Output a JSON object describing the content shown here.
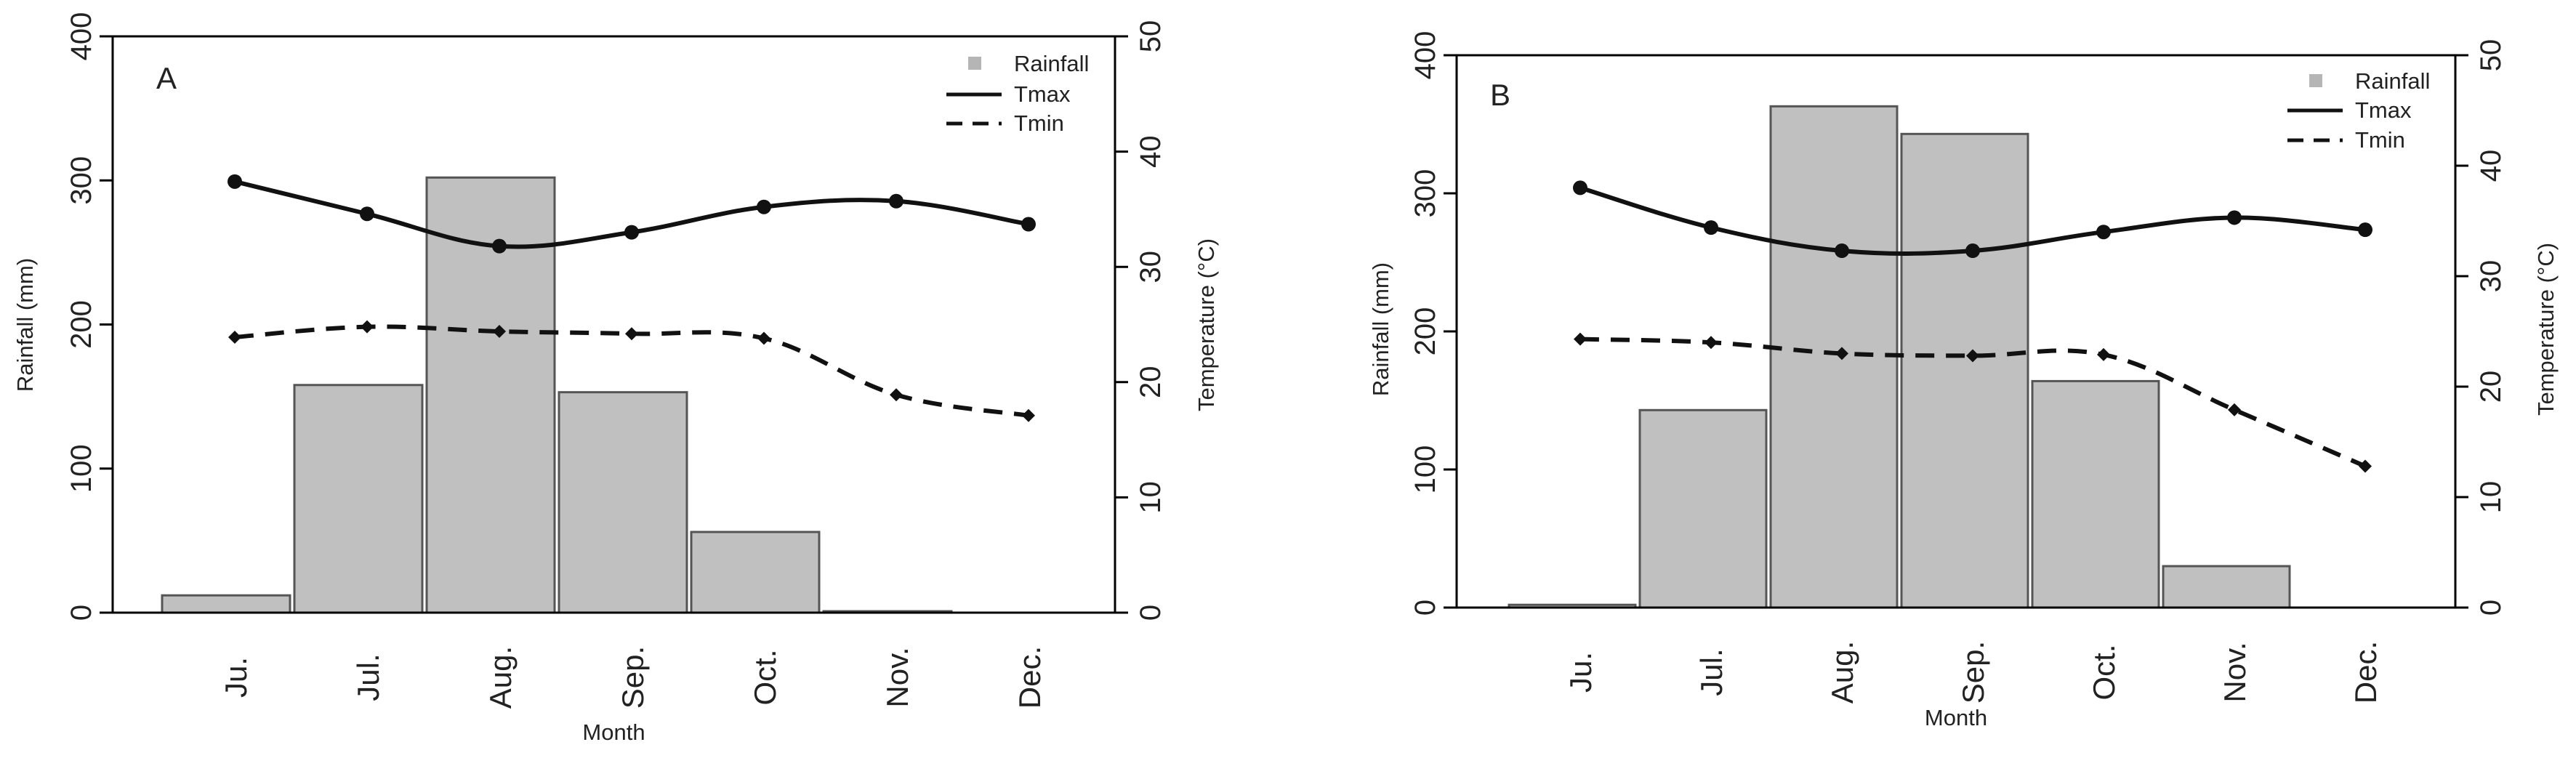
{
  "chart_data": [
    {
      "panel": "A",
      "type": "bar+line",
      "xlabel": "Month",
      "ylabel_left": "Rainfall (mm)",
      "ylabel_right": "Temperature (°C)",
      "categories": [
        "Ju.",
        "Jul.",
        "Aug.",
        "Sep.",
        "Oct.",
        "Nov.",
        "Dec."
      ],
      "ylim_left": [
        0,
        400
      ],
      "yticks_left": [
        "0",
        "100",
        "200",
        "300",
        "400"
      ],
      "ylim_right": [
        0,
        50
      ],
      "yticks_right": [
        "0",
        "10",
        "20",
        "30",
        "40",
        "50"
      ],
      "legend": {
        "position": "top-right",
        "items": [
          "Rainfall",
          "Tmax",
          "Tmin"
        ]
      },
      "series": [
        {
          "name": "Rainfall",
          "type": "bar",
          "axis": "left",
          "values": [
            12,
            158,
            302,
            153,
            56,
            1,
            0
          ]
        },
        {
          "name": "Tmax",
          "type": "line",
          "style": "solid",
          "axis": "right",
          "values": [
            37.4,
            34.6,
            31.8,
            33.0,
            35.2,
            35.7,
            33.7
          ]
        },
        {
          "name": "Tmin",
          "type": "line",
          "style": "dashed",
          "axis": "right",
          "values": [
            23.9,
            24.8,
            24.4,
            24.2,
            23.8,
            18.9,
            17.1
          ]
        }
      ]
    },
    {
      "panel": "B",
      "type": "bar+line",
      "xlabel": "Month",
      "ylabel_left": "Rainfall (mm)",
      "ylabel_right": "Temperature (°C)",
      "categories": [
        "Ju.",
        "Jul.",
        "Aug.",
        "Sep.",
        "Oct.",
        "Nov.",
        "Dec."
      ],
      "ylim_left": [
        0,
        400
      ],
      "yticks_left": [
        "0",
        "100",
        "200",
        "300",
        "400"
      ],
      "ylim_right": [
        0,
        50
      ],
      "yticks_right": [
        "0",
        "10",
        "20",
        "30",
        "40",
        "50"
      ],
      "legend": {
        "position": "top-right",
        "items": [
          "Rainfall",
          "Tmax",
          "Tmin"
        ]
      },
      "series": [
        {
          "name": "Rainfall",
          "type": "bar",
          "axis": "left",
          "values": [
            2,
            143,
            363,
            343,
            164,
            30,
            0
          ]
        },
        {
          "name": "Tmax",
          "type": "line",
          "style": "solid",
          "axis": "right",
          "values": [
            38.0,
            34.4,
            32.3,
            32.3,
            34.0,
            35.3,
            34.2
          ]
        },
        {
          "name": "Tmin",
          "type": "line",
          "style": "dashed",
          "axis": "right",
          "values": [
            24.3,
            24.0,
            23.0,
            22.8,
            22.9,
            17.9,
            12.8
          ]
        }
      ]
    }
  ]
}
